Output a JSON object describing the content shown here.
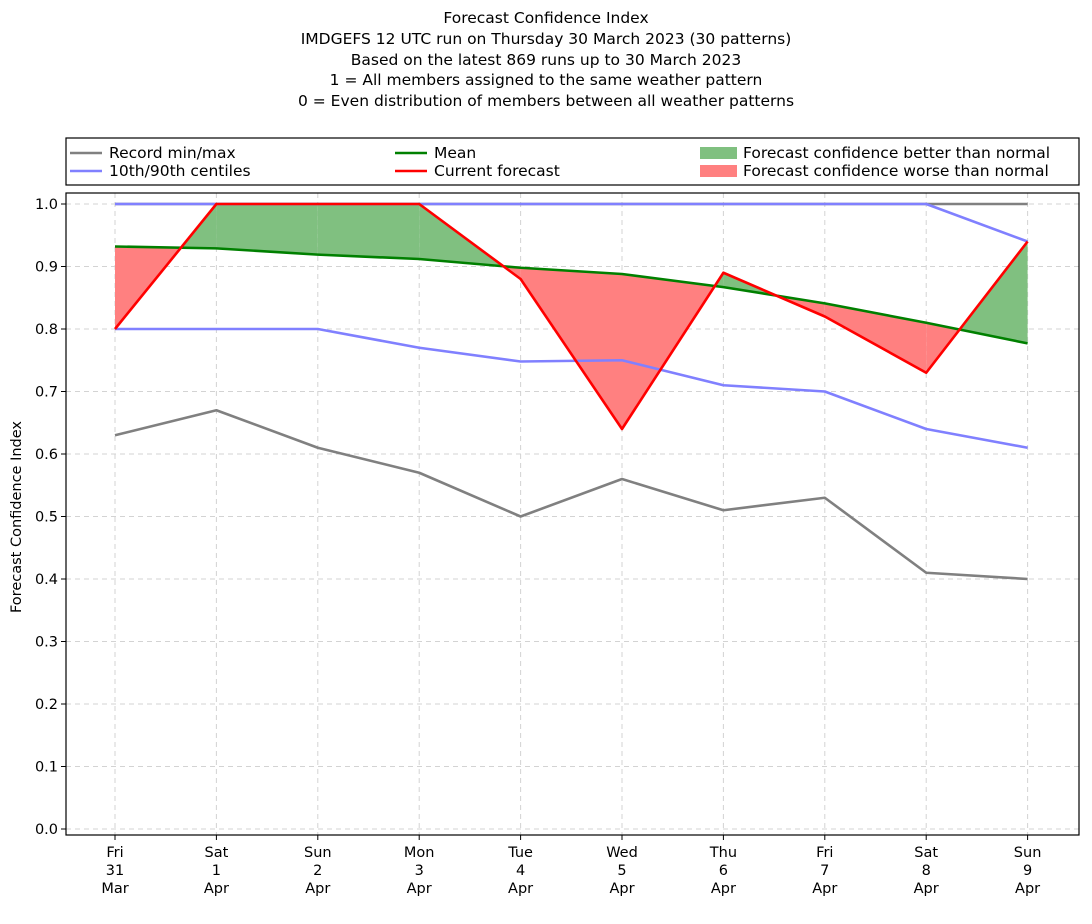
{
  "chart_data": {
    "type": "line",
    "title_lines": [
      "Forecast Confidence Index",
      "IMDGEFS 12 UTC run on Thursday 30 March 2023 (30 patterns)",
      "Based on the latest 869 runs up to 30 March 2023",
      "1 = All members assigned to the same weather pattern",
      "0 = Even distribution of members between all weather patterns"
    ],
    "xlabel": "",
    "ylabel": "Forecast Confidence Index",
    "ylim": [
      0.0,
      1.0
    ],
    "yticks": [
      "0.0",
      "0.1",
      "0.2",
      "0.3",
      "0.4",
      "0.5",
      "0.6",
      "0.7",
      "0.8",
      "0.9",
      "1.0"
    ],
    "grid": true,
    "legend_placement": "top",
    "categories": [
      [
        "Fri",
        "31",
        "Mar"
      ],
      [
        "Sat",
        "1",
        "Apr"
      ],
      [
        "Sun",
        "2",
        "Apr"
      ],
      [
        "Mon",
        "3",
        "Apr"
      ],
      [
        "Tue",
        "4",
        "Apr"
      ],
      [
        "Wed",
        "5",
        "Apr"
      ],
      [
        "Thu",
        "6",
        "Apr"
      ],
      [
        "Fri",
        "7",
        "Apr"
      ],
      [
        "Sat",
        "8",
        "Apr"
      ],
      [
        "Sun",
        "9",
        "Apr"
      ]
    ],
    "series": [
      {
        "key": "record_min",
        "name": "Record min/max",
        "color": "#808080",
        "values": [
          0.63,
          0.67,
          0.61,
          0.57,
          0.5,
          0.56,
          0.51,
          0.53,
          0.41,
          0.4
        ]
      },
      {
        "key": "record_max",
        "name": "",
        "color": "#808080",
        "values": [
          1.0,
          1.0,
          1.0,
          1.0,
          1.0,
          1.0,
          1.0,
          1.0,
          1.0,
          1.0
        ]
      },
      {
        "key": "p10",
        "name": "10th/90th centiles",
        "color": "#8080ff",
        "values": [
          0.8,
          0.8,
          0.8,
          0.77,
          0.748,
          0.75,
          0.71,
          0.7,
          0.64,
          0.61
        ]
      },
      {
        "key": "p90",
        "name": "",
        "color": "#8080ff",
        "values": [
          1.0,
          1.0,
          1.0,
          1.0,
          1.0,
          1.0,
          1.0,
          1.0,
          1.0,
          0.94
        ]
      },
      {
        "key": "mean",
        "name": "Mean",
        "color": "#008000",
        "values": [
          0.932,
          0.929,
          0.919,
          0.912,
          0.898,
          0.888,
          0.867,
          0.841,
          0.81,
          0.777
        ]
      },
      {
        "key": "current",
        "name": "Current forecast",
        "color": "#ff0000",
        "values": [
          0.8,
          1.0,
          1.0,
          1.0,
          0.88,
          0.64,
          0.89,
          0.82,
          0.73,
          0.94
        ]
      }
    ],
    "fills": [
      {
        "name": "Forecast confidence better than normal",
        "color": "#80c080"
      },
      {
        "name": "Forecast confidence worse than normal",
        "color": "#ff8080"
      }
    ],
    "legend": [
      {
        "label": "Record min/max",
        "kind": "line",
        "color": "#808080"
      },
      {
        "label": "10th/90th centiles",
        "kind": "line",
        "color": "#8080ff"
      },
      {
        "label": "Mean",
        "kind": "line",
        "color": "#008000"
      },
      {
        "label": "Current forecast",
        "kind": "line",
        "color": "#ff0000"
      },
      {
        "label": "Forecast confidence better than normal",
        "kind": "patch",
        "color": "#80c080"
      },
      {
        "label": "Forecast confidence worse than normal",
        "kind": "patch",
        "color": "#ff8080"
      }
    ]
  }
}
